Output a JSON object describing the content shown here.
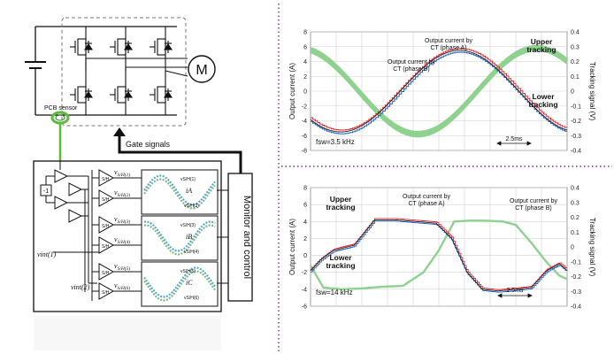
{
  "circuit": {
    "motor_label": "M",
    "pcb_sensor_label": "PCB sensor",
    "gate_signals_label": "Gate signals",
    "monitor_label": "Monitor and control",
    "sh_labels": [
      "vS/H(1)",
      "vS/H(2)",
      "vS/H(3)",
      "vS/H(4)",
      "vS/H(5)",
      "vS/H(6)"
    ],
    "sh_block_label": "S/H",
    "vint1_label": "vint(1)",
    "vint2_label": "vint(2)",
    "inset_labels": [
      "vS/H(1)",
      "vS/H(2)",
      "vS/H(3)",
      "vS/H(4)",
      "vS/H(5)",
      "vS/H(6)"
    ],
    "inset_current_labels": [
      "iA",
      "iB",
      "iC"
    ],
    "inverter_label": "-1",
    "colors": {
      "teal": "#00a3a3",
      "green_ring": "#5dbb3a",
      "dashed": "#777777"
    }
  },
  "chart_data": [
    {
      "type": "line",
      "name_hint": "top",
      "ylabel": "Output current (A)",
      "ylabel_right": "Tracking signal (V)",
      "ylim": [
        -8,
        8
      ],
      "ylim_right": [
        -0.4,
        0.4
      ],
      "yticks": [
        8,
        6,
        4,
        2,
        0,
        -2,
        -4,
        -6,
        -8
      ],
      "yticks_right": [
        "0.4",
        "0.3",
        "0.2",
        "0.1",
        "0",
        "-0.1",
        "-0.2",
        "-0.3",
        "-0.4"
      ],
      "grid": true,
      "fsw_label": "fsw=3.5 kHz",
      "scale_label": "2.5ms",
      "annotations": [
        "Output current by CT (phase A)",
        "Output current by CT (phase B)",
        "Upper tracking",
        "Lower tracking"
      ],
      "series": [
        {
          "role": "phase_a",
          "amplitude": 5.5,
          "phase_deg": -90,
          "color": "#222222"
        },
        {
          "role": "phase_b",
          "amplitude": 5.8,
          "phase_deg": 90,
          "color": "#8fd18f"
        },
        {
          "role": "upper",
          "amplitude": 5.6,
          "phase_deg": -90,
          "color": "#e8262a"
        },
        {
          "role": "lower",
          "amplitude": 5.3,
          "phase_deg": -90,
          "color": "#1f5fbf"
        }
      ],
      "colors": {
        "upper_text": "#e8262a",
        "lower_text": "#1f7fbf"
      }
    },
    {
      "type": "line",
      "name_hint": "bottom",
      "ylabel": "Output current (A)",
      "ylabel_right": "Tracking signal (V)",
      "ylim": [
        -6,
        8
      ],
      "ylim_right": [
        -0.4,
        0.4
      ],
      "yticks": [
        8,
        6,
        4,
        2,
        0,
        -2,
        -4,
        -6
      ],
      "yticks_right": [
        "0.4",
        "0.3",
        "0.2",
        "0.1",
        "0",
        "-0.1",
        "-0.2",
        "-0.3",
        "-0.4"
      ],
      "grid": true,
      "fsw_label": "fsw=14 kHz",
      "scale_label": "2.5ms",
      "annotations": [
        "Upper tracking",
        "Output current by CT (phase A)",
        "Output current by CT (phase B)",
        "Lower tracking"
      ],
      "series": [
        {
          "role": "phase_a",
          "color": "#222222",
          "x": [
            0,
            0.04,
            0.09,
            0.17,
            0.25,
            0.33,
            0.41,
            0.49,
            0.55,
            0.61,
            0.67,
            0.73,
            0.8,
            0.86,
            0.92,
            0.97,
            1.0
          ],
          "y": [
            -1.8,
            -0.5,
            0.6,
            1.2,
            4.2,
            4.2,
            4.0,
            3.8,
            2.0,
            -2.0,
            -4.0,
            -4.2,
            -4.0,
            -3.8,
            -1.8,
            -1.0,
            -1.8
          ]
        },
        {
          "role": "phase_b",
          "color": "#8fd18f",
          "x": [
            0,
            0.05,
            0.12,
            0.2,
            0.28,
            0.36,
            0.44,
            0.5,
            0.56,
            0.62,
            0.68,
            0.75,
            0.8,
            0.86,
            0.92,
            0.97,
            1.0
          ],
          "y": [
            -1.2,
            -3.8,
            -4.0,
            -3.9,
            -3.7,
            -3.6,
            -2.0,
            0.6,
            4.0,
            4.1,
            4.1,
            4.0,
            3.6,
            1.5,
            -0.8,
            -2.4,
            -2.8
          ]
        },
        {
          "role": "upper",
          "color": "#e8262a"
        },
        {
          "role": "lower",
          "color": "#1f5fbf"
        }
      ],
      "colors": {
        "upper_text": "#e8262a",
        "lower_text": "#1f7fbf"
      }
    }
  ]
}
